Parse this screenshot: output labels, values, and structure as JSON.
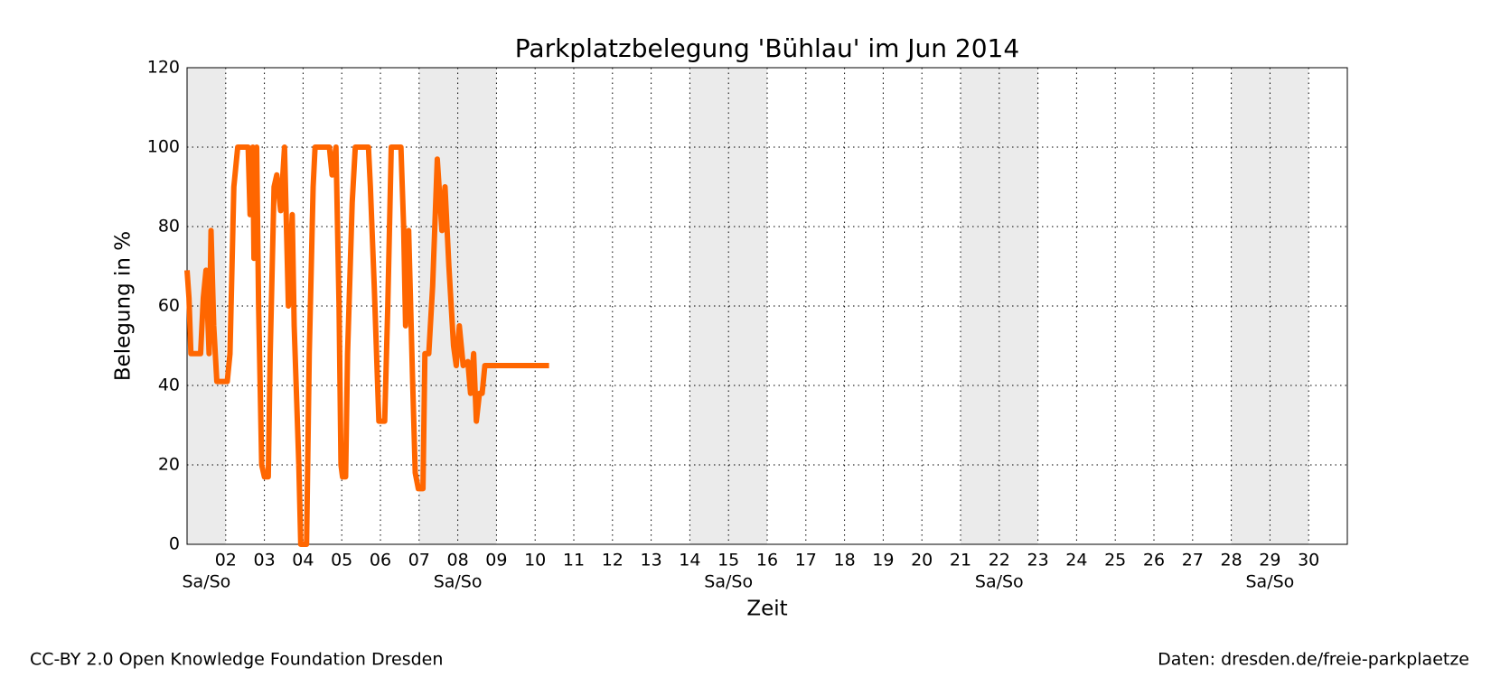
{
  "chart_data": {
    "type": "line",
    "title": "Parkplatzbelegung 'Bühlau' im Jun 2014",
    "xlabel": "Zeit",
    "ylabel": "Belegung in %",
    "xlim": [
      1,
      31
    ],
    "ylim": [
      0,
      120
    ],
    "xticks": [
      {
        "value": 2,
        "label": "02"
      },
      {
        "value": 3,
        "label": "03"
      },
      {
        "value": 4,
        "label": "04"
      },
      {
        "value": 5,
        "label": "05"
      },
      {
        "value": 6,
        "label": "06"
      },
      {
        "value": 7,
        "label": "07"
      },
      {
        "value": 8,
        "label": "08"
      },
      {
        "value": 9,
        "label": "09"
      },
      10,
      11,
      12,
      13,
      14,
      15,
      16,
      17,
      18,
      19,
      20,
      21,
      22,
      23,
      24,
      25,
      26,
      27,
      28,
      29,
      30
    ],
    "yticks": [
      0,
      20,
      40,
      60,
      80,
      100,
      120
    ],
    "grid": true,
    "weekends": [
      {
        "range": [
          1,
          2
        ],
        "label": "Sa/So"
      },
      {
        "range": [
          7,
          9
        ],
        "label": "Sa/So"
      },
      {
        "range": [
          14,
          16
        ],
        "label": "Sa/So"
      },
      {
        "range": [
          21,
          23
        ],
        "label": "Sa/So"
      },
      {
        "range": [
          28,
          30
        ],
        "label": "Sa/So"
      }
    ],
    "series": [
      {
        "color": "#ff6600",
        "x": [
          1.0,
          1.05,
          1.1,
          1.35,
          1.42,
          1.49,
          1.57,
          1.62,
          1.69,
          1.77,
          2.04,
          2.11,
          2.21,
          2.31,
          2.58,
          2.63,
          2.7,
          2.73,
          2.8,
          2.85,
          2.93,
          3.0,
          3.1,
          3.15,
          3.25,
          3.32,
          3.42,
          3.52,
          3.62,
          3.72,
          3.77,
          3.89,
          3.94,
          4.09,
          4.16,
          4.26,
          4.31,
          4.68,
          4.75,
          4.85,
          4.93,
          4.98,
          5.02,
          5.1,
          5.15,
          5.27,
          5.35,
          5.69,
          5.74,
          5.84,
          5.91,
          5.96,
          6.11,
          6.19,
          6.28,
          6.53,
          6.6,
          6.65,
          6.73,
          6.83,
          6.9,
          6.98,
          7.1,
          7.15,
          7.25,
          7.35,
          7.47,
          7.59,
          7.67,
          7.77,
          7.89,
          7.96,
          8.04,
          8.14,
          8.26,
          8.33,
          8.41,
          8.48,
          8.56,
          8.63,
          8.7,
          10.36
        ],
        "values": [
          69,
          62,
          48,
          48,
          62,
          69,
          48,
          79,
          55,
          41,
          41,
          48,
          90,
          100,
          100,
          83,
          100,
          72,
          100,
          60,
          20,
          17,
          17,
          48,
          90,
          93,
          84,
          100,
          60,
          83,
          55,
          20,
          0,
          0,
          48,
          90,
          100,
          100,
          93,
          100,
          60,
          20,
          17,
          17,
          48,
          86,
          100,
          100,
          90,
          65,
          45,
          31,
          31,
          60,
          100,
          100,
          80,
          55,
          79,
          42,
          18,
          14,
          14,
          48,
          48,
          65,
          97,
          79,
          90,
          70,
          50,
          45,
          55,
          45,
          46,
          38,
          48,
          31,
          38,
          38,
          45,
          45
        ]
      }
    ]
  },
  "footer": {
    "left": "CC-BY 2.0 Open Knowledge Foundation Dresden",
    "right": "Daten: dresden.de/freie-parkplaetze"
  }
}
